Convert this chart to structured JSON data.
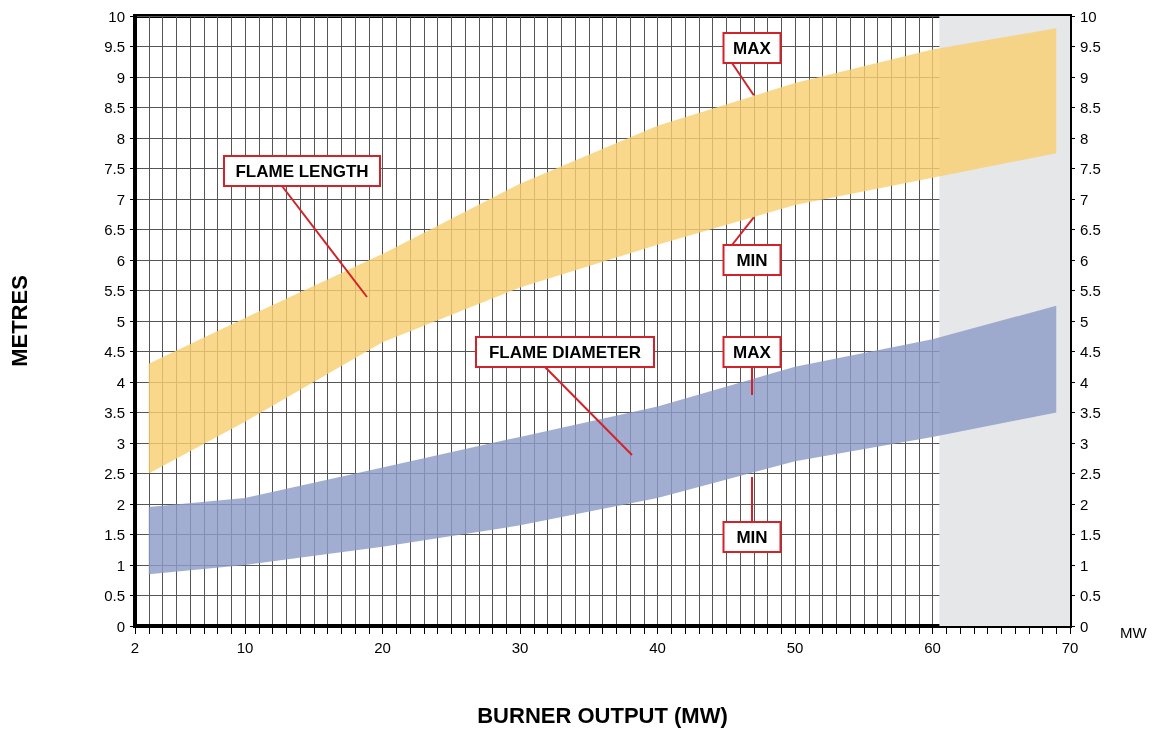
{
  "chart_data": {
    "type": "area",
    "xlabel": "BURNER OUTPUT (MW)",
    "ylabel": "METRES",
    "xlim": [
      2,
      70
    ],
    "xticks": [
      2,
      {
        "value": 3,
        "label": null
      },
      {
        "value": 4,
        "label": null
      },
      {
        "value": 5,
        "label": null
      },
      {
        "value": 6,
        "label": null
      },
      {
        "value": 7,
        "label": null
      },
      {
        "value": 8,
        "label": null
      },
      {
        "value": 9,
        "label": null
      },
      10,
      {
        "value": 11,
        "label": null
      },
      {
        "value": 12,
        "label": null
      },
      {
        "value": 13,
        "label": null
      },
      {
        "value": 14,
        "label": null
      },
      {
        "value": 15,
        "label": null
      },
      {
        "value": 16,
        "label": null
      },
      {
        "value": 17,
        "label": null
      },
      {
        "value": 18,
        "label": null
      },
      {
        "value": 19,
        "label": null
      },
      20,
      {
        "value": 21,
        "label": null
      },
      {
        "value": 22,
        "label": null
      },
      {
        "value": 23,
        "label": null
      },
      {
        "value": 24,
        "label": null
      },
      {
        "value": 25,
        "label": null
      },
      {
        "value": 26,
        "label": null
      },
      {
        "value": 27,
        "label": null
      },
      {
        "value": 28,
        "label": null
      },
      {
        "value": 29,
        "label": null
      },
      30,
      {
        "value": 31,
        "label": null
      },
      {
        "value": 32,
        "label": null
      },
      {
        "value": 33,
        "label": null
      },
      {
        "value": 34,
        "label": null
      },
      {
        "value": 35,
        "label": null
      },
      {
        "value": 36,
        "label": null
      },
      {
        "value": 37,
        "label": null
      },
      {
        "value": 38,
        "label": null
      },
      {
        "value": 39,
        "label": null
      },
      40,
      {
        "value": 41,
        "label": null
      },
      {
        "value": 42,
        "label": null
      },
      {
        "value": 43,
        "label": null
      },
      {
        "value": 44,
        "label": null
      },
      {
        "value": 45,
        "label": null
      },
      {
        "value": 46,
        "label": null
      },
      {
        "value": 47,
        "label": null
      },
      {
        "value": 48,
        "label": null
      },
      {
        "value": 49,
        "label": null
      },
      50,
      {
        "value": 51,
        "label": null
      },
      {
        "value": 52,
        "label": null
      },
      {
        "value": 53,
        "label": null
      },
      {
        "value": 54,
        "label": null
      },
      {
        "value": 55,
        "label": null
      },
      {
        "value": 56,
        "label": null
      },
      {
        "value": 57,
        "label": null
      },
      {
        "value": 58,
        "label": null
      },
      {
        "value": 59,
        "label": null
      },
      60,
      {
        "value": 61,
        "label": null
      },
      {
        "value": 62,
        "label": null
      },
      {
        "value": 63,
        "label": null
      },
      {
        "value": 64,
        "label": null
      },
      {
        "value": 65,
        "label": null
      },
      {
        "value": 66,
        "label": null
      },
      {
        "value": 67,
        "label": null
      },
      {
        "value": 68,
        "label": null
      },
      {
        "value": 69,
        "label": null
      },
      70
    ],
    "ylim": [
      0,
      10
    ],
    "yticks": [
      0,
      0.5,
      1,
      1.5,
      2,
      2.5,
      3,
      3.5,
      4,
      4.5,
      5,
      5.5,
      6,
      6.5,
      7,
      7.5,
      8,
      8.5,
      9,
      9.5,
      10
    ],
    "y2lim": [
      0,
      10
    ],
    "y2ticks": [
      0,
      0.5,
      1,
      1.5,
      2,
      2.5,
      3,
      3.5,
      4,
      4.5,
      5,
      5.5,
      6,
      6.5,
      7,
      7.5,
      8,
      8.5,
      9,
      9.5,
      10
    ],
    "grid": true,
    "series": [
      {
        "color": "#f9cf72",
        "x": [
          3,
          10,
          20,
          30,
          40,
          50,
          60,
          69
        ],
        "values": [
          null,
          null,
          null,
          null,
          null,
          null,
          null,
          null
        ],
        "lower": [
          2.5,
          3.35,
          4.65,
          5.55,
          6.25,
          6.9,
          7.35,
          7.75
        ],
        "upper": [
          4.3,
          5.05,
          6.1,
          7.25,
          8.2,
          8.9,
          9.45,
          9.8
        ]
      },
      {
        "color": "#8d9bc8",
        "x": [
          3,
          10,
          20,
          30,
          40,
          50,
          60,
          69
        ],
        "values": [
          null,
          null,
          null,
          null,
          null,
          null,
          null,
          null
        ],
        "lower": [
          0.85,
          1.0,
          1.3,
          1.65,
          2.1,
          2.7,
          3.1,
          3.5
        ],
        "upper": [
          1.95,
          2.1,
          2.6,
          3.1,
          3.6,
          4.25,
          4.7,
          5.25
        ]
      }
    ],
    "bands": [
      {
        "axis": "x",
        "from": 60.5,
        "to": 70,
        "color": "#e6e7e9"
      }
    ],
    "annotations": [
      "FLAME LENGTH",
      "FLAME DIAMETER",
      {
        "text": "MAX",
        "x": 47,
        "y": 8.7
      },
      {
        "text": "MIN",
        "x": 47,
        "y": 6.7
      },
      "MAX",
      "MIN",
      "MW"
    ]
  }
}
